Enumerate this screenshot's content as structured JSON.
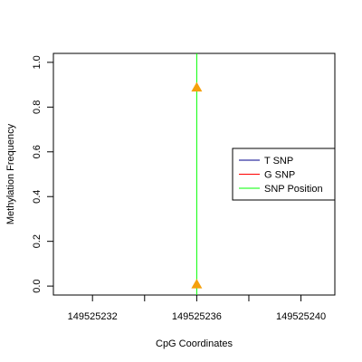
{
  "chart_data": {
    "type": "scatter",
    "title": "",
    "xlabel": "CpG Coordinates",
    "ylabel": "Methylation Frequency",
    "xlim": [
      149525230.5,
      149525241.3
    ],
    "ylim": [
      -0.04,
      1.04
    ],
    "x_ticks": [
      149525232,
      149525234,
      149525236,
      149525238,
      149525240
    ],
    "x_tick_labels": [
      "149525232",
      "",
      "149525236",
      "",
      "149525240"
    ],
    "y_ticks": [
      0.0,
      0.2,
      0.4,
      0.6,
      0.8,
      1.0
    ],
    "y_tick_labels": [
      "0.0",
      "0.2",
      "0.4",
      "0.6",
      "0.8",
      "1.0"
    ],
    "snp_position": 149525236,
    "points": [
      {
        "x": 149525236,
        "y": 0.89
      },
      {
        "x": 149525236,
        "y": 0.01
      }
    ],
    "legend": {
      "placement": "right",
      "entries": [
        {
          "label": "T SNP",
          "color": "#00008b"
        },
        {
          "label": "G SNP",
          "color": "#ff0000"
        },
        {
          "label": "SNP Position",
          "color": "#00ff00"
        }
      ]
    },
    "colors": {
      "point": "#f5a00c",
      "snp_line": "#00ff00"
    }
  }
}
